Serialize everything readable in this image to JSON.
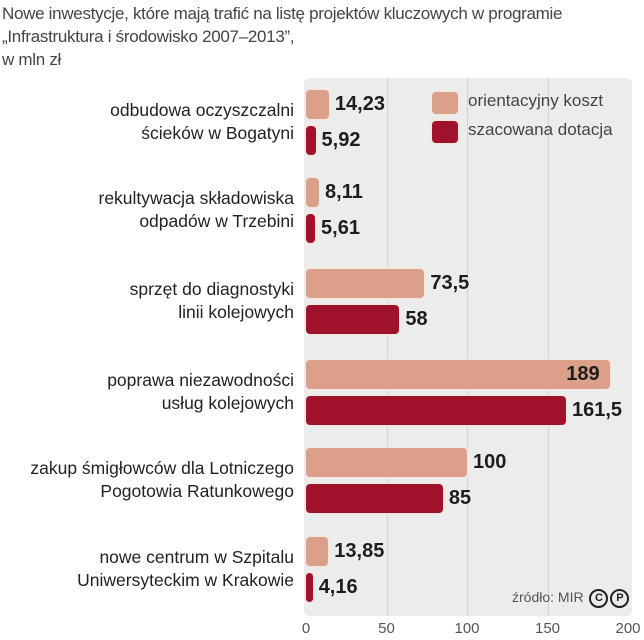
{
  "title_lines": [
    "Nowe inwestycje, które mają trafić na listę projektów kluczowych w programie",
    "„Infrastruktura i środowisko 2007–2013”,",
    "w mln zł"
  ],
  "source": "źródło: MIR",
  "logo_text": "CP",
  "chart_data": {
    "type": "bar",
    "orientation": "horizontal",
    "title": "Nowe inwestycje, które mają trafić na listę projektów kluczowych w programie „Infrastruktura i środowisko 2007–2013”, w mln zł",
    "categories": [
      [
        "odbudowa oczyszczalni",
        "ścieków w Bogatyni"
      ],
      [
        "rekultywacja składowiska",
        "odpadów w Trzebini"
      ],
      [
        "sprzęt do diagnostyki",
        "linii kolejowych"
      ],
      [
        "poprawa niezawodności",
        "usług kolejowych"
      ],
      [
        "zakup śmigłowców dla Lotniczego",
        "Pogotowia Ratunkowego"
      ],
      [
        "nowe centrum w Szpitalu",
        "Uniwersyteckim w Krakowie"
      ]
    ],
    "series": [
      {
        "name": "orientacyjny koszt",
        "color": "#dba08a",
        "values": [
          14.23,
          8.11,
          73.5,
          189,
          100,
          13.85
        ],
        "labels": [
          "14,23",
          "8,11",
          "73,5",
          "189",
          "100",
          "13,85"
        ]
      },
      {
        "name": "szacowana dotacja",
        "color": "#a0112b",
        "values": [
          5.92,
          5.61,
          58,
          161.5,
          85,
          4.16
        ],
        "labels": [
          "5,92",
          "5,61",
          "58",
          "161,5",
          "85",
          "4,16"
        ]
      }
    ],
    "xlim": [
      0,
      200
    ],
    "xticks": [
      "0",
      "50",
      "100",
      "150",
      "200"
    ],
    "grid": true,
    "legend": "top-right"
  }
}
